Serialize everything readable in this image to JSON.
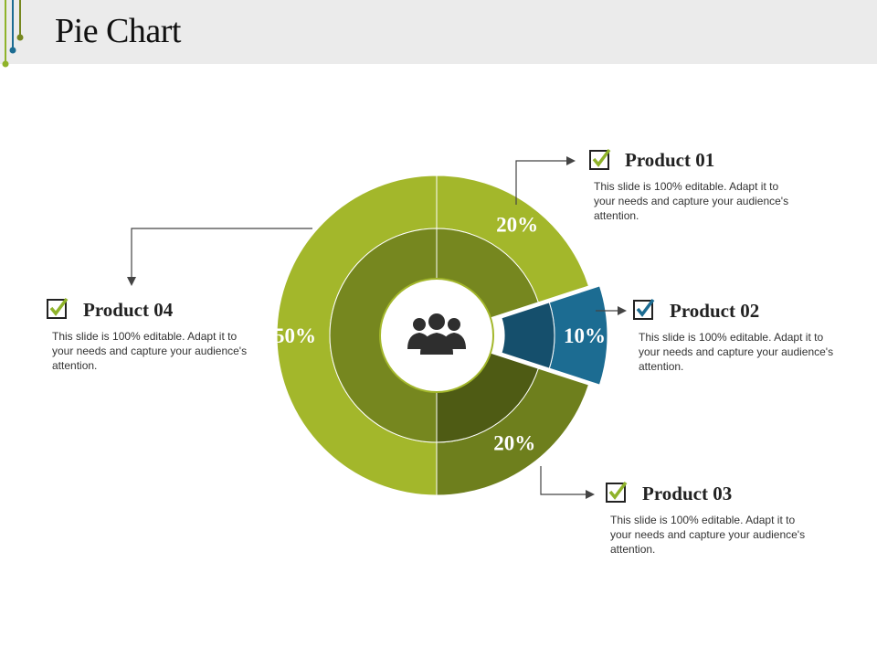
{
  "title": "Pie Chart",
  "colors": {
    "outer_green": "#a3b72b",
    "inner_green": "#76871f",
    "product03_outer": "#6e7f1d",
    "product03_inner": "#4e5b14",
    "blue_outer": "#1c6c92",
    "blue_inner": "#154f6c",
    "check_green": "#8fb32a",
    "check_blue": "#1c6c92"
  },
  "center_icon": "people-group-icon",
  "products": [
    {
      "id": "p01",
      "title": "Product 01",
      "desc": "This slide is 100% editable. Adapt it to your needs and capture your audience's attention."
    },
    {
      "id": "p02",
      "title": "Product 02",
      "desc": "This slide is 100% editable. Adapt it to your needs and capture your audience's attention."
    },
    {
      "id": "p03",
      "title": "Product 03",
      "desc": "This slide is 100% editable. Adapt it to your needs and capture your audience's attention."
    },
    {
      "id": "p04",
      "title": "Product 04",
      "desc": "This slide is 100% editable. Adapt it to your needs and capture your audience's attention."
    }
  ],
  "chart_data": {
    "type": "pie",
    "title": "Pie Chart",
    "categories": [
      "Product 01",
      "Product 02",
      "Product 03",
      "Product 04"
    ],
    "values": [
      20,
      10,
      20,
      50
    ],
    "labels": [
      "20%",
      "10%",
      "20%",
      "50%"
    ]
  }
}
